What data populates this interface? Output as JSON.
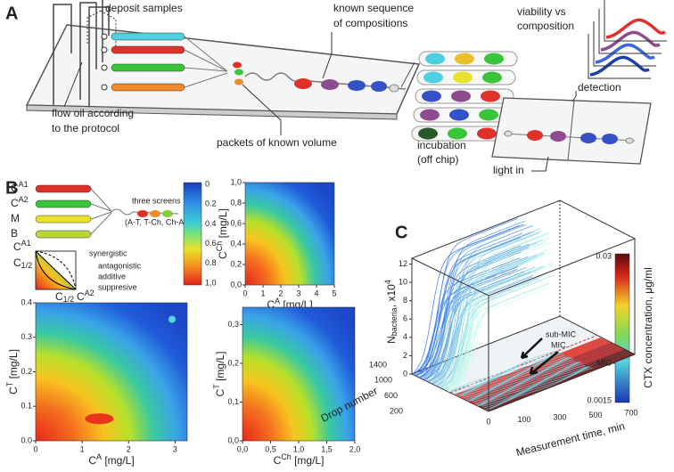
{
  "panel_a": {
    "label": "A",
    "deposit_samples": "deposit samples",
    "known_sequence": [
      "known sequence",
      "of compositions"
    ],
    "viability": [
      "viability vs",
      "composition"
    ],
    "flow_oil": [
      "flow oil according",
      "to the protocol"
    ],
    "packets": "packets of known volume",
    "incubation": [
      "incubation",
      "(off chip)"
    ],
    "detection": "detection",
    "light_in": "light in"
  },
  "panel_b": {
    "label": "B",
    "inputs": [
      {
        "base": "C",
        "sup": "A1"
      },
      {
        "base": "C",
        "sup": "A2"
      },
      {
        "base": "M"
      },
      {
        "base": "B"
      }
    ],
    "screens": [
      "three screens",
      "(A-T, T-Ch, Ch-A)"
    ],
    "interactions": [
      "synergistic",
      "antagonistic",
      "additive",
      "suppresive"
    ],
    "diagram_labels": [
      {
        "base": "C",
        "sup": "A1"
      },
      {
        "base": "C",
        "sub": "1/2"
      },
      {
        "base": "C",
        "sub": "1/2"
      },
      {
        "base": "C",
        "sup": "A2"
      }
    ],
    "colorbar_ticks": [
      "0",
      "0.2",
      "0.4",
      "0.6",
      "0.8",
      "1,0"
    ],
    "plots": [
      {
        "xlabel": {
          "base": "C",
          "sup": "A",
          "unit": " [mg/L]"
        },
        "ylabel": {
          "base": "C",
          "sup": "Ch",
          "unit": " [mg/L]"
        },
        "xticks": [
          "0",
          "1",
          "2",
          "3",
          "4",
          "5"
        ],
        "yticks": [
          "0,0",
          "0,2",
          "0,4",
          "0,6",
          "0,8",
          "1,0"
        ]
      },
      {
        "xlabel": {
          "base": "C",
          "sup": "A",
          "unit": " [mg/L]"
        },
        "ylabel": {
          "base": "C",
          "sup": "T",
          "unit": " [mg/L]"
        },
        "xticks": [
          "0",
          "1",
          "2",
          "3"
        ],
        "yticks": [
          "0.0",
          "0.1",
          "0.2",
          "0.3",
          "0.4"
        ]
      },
      {
        "xlabel": {
          "base": "C",
          "sup": "Ch",
          "unit": " [mg/L]"
        },
        "ylabel": {
          "base": "C",
          "sup": "T",
          "unit": " [mg/L]"
        },
        "xticks": [
          "0,0",
          "0,5",
          "1,0",
          "1,5",
          "2,0"
        ],
        "yticks": [
          "0,0",
          "0,1",
          "0,2",
          "0,3"
        ]
      }
    ]
  },
  "panel_c": {
    "label": "C",
    "y_label": {
      "base": "N",
      "sub": "bacteria",
      "rest": ", x10",
      "sup": "4"
    },
    "y_ticks": [
      "0",
      "2",
      "4",
      "6",
      "8",
      "10",
      "12"
    ],
    "drop_ticks": [
      "200",
      "600",
      "1000",
      "1400"
    ],
    "drop_label": "Drop number",
    "time_ticks": [
      "0",
      "100",
      "300",
      "500",
      "700"
    ],
    "time_label": "Measurement time, min",
    "annotations": [
      "sub-MIC",
      "MIC"
    ],
    "colorbar": {
      "label": "CTX concentration, μg/ml",
      "ticks": [
        "0.03",
        "MIC",
        "0.0015"
      ]
    }
  }
}
